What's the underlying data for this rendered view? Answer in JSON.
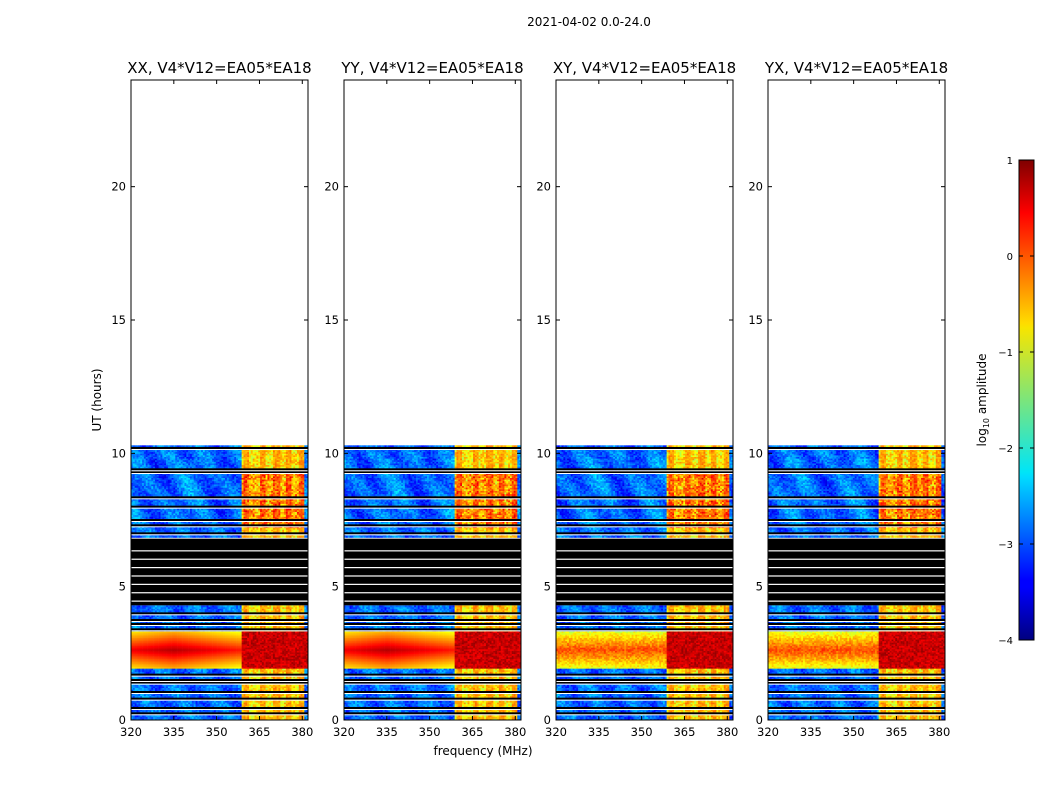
{
  "suptitle": "2021-04-02 0.0-24.0",
  "chart_data": {
    "type": "heatmap",
    "title": "2021-04-02 0.0-24.0",
    "xlabel": "frequency (MHz)",
    "ylabel": "UT (hours)",
    "xlim": [
      320,
      382
    ],
    "ylim": [
      0,
      24
    ],
    "xticks": [
      320,
      335,
      350,
      365,
      380
    ],
    "yticks": [
      0,
      5,
      10,
      15,
      20
    ],
    "panels": [
      {
        "title": "XX, V4*V12=EA05*EA18",
        "pol": "XX"
      },
      {
        "title": "YY, V4*V12=EA05*EA18",
        "pol": "YY"
      },
      {
        "title": "XY, V4*V12=EA05*EA18",
        "pol": "XY"
      },
      {
        "title": "YX, V4*V12=EA05*EA18",
        "pol": "YX"
      }
    ],
    "data_time_range_hours": [
      0,
      10.3
    ],
    "flagged_block_hours": [
      4.3,
      6.8
    ],
    "rfi_band_mhz": [
      359,
      381
    ],
    "rfi_channels_mhz": [
      360.5,
      366,
      371,
      375.5,
      380
    ],
    "strong_event_hours": [
      1.9,
      3.3
    ],
    "colorbar": {
      "label": "log10 amplitude",
      "label_main": "log",
      "label_sub": "10",
      "label_rest": " amplitude",
      "min": -4,
      "max": 1,
      "ticks": [
        1,
        0,
        -1,
        -2,
        -3,
        -4
      ],
      "ticklabels": [
        "1",
        "0",
        "−1",
        "−2",
        "−3",
        "−4"
      ],
      "colormap": "jet"
    }
  }
}
